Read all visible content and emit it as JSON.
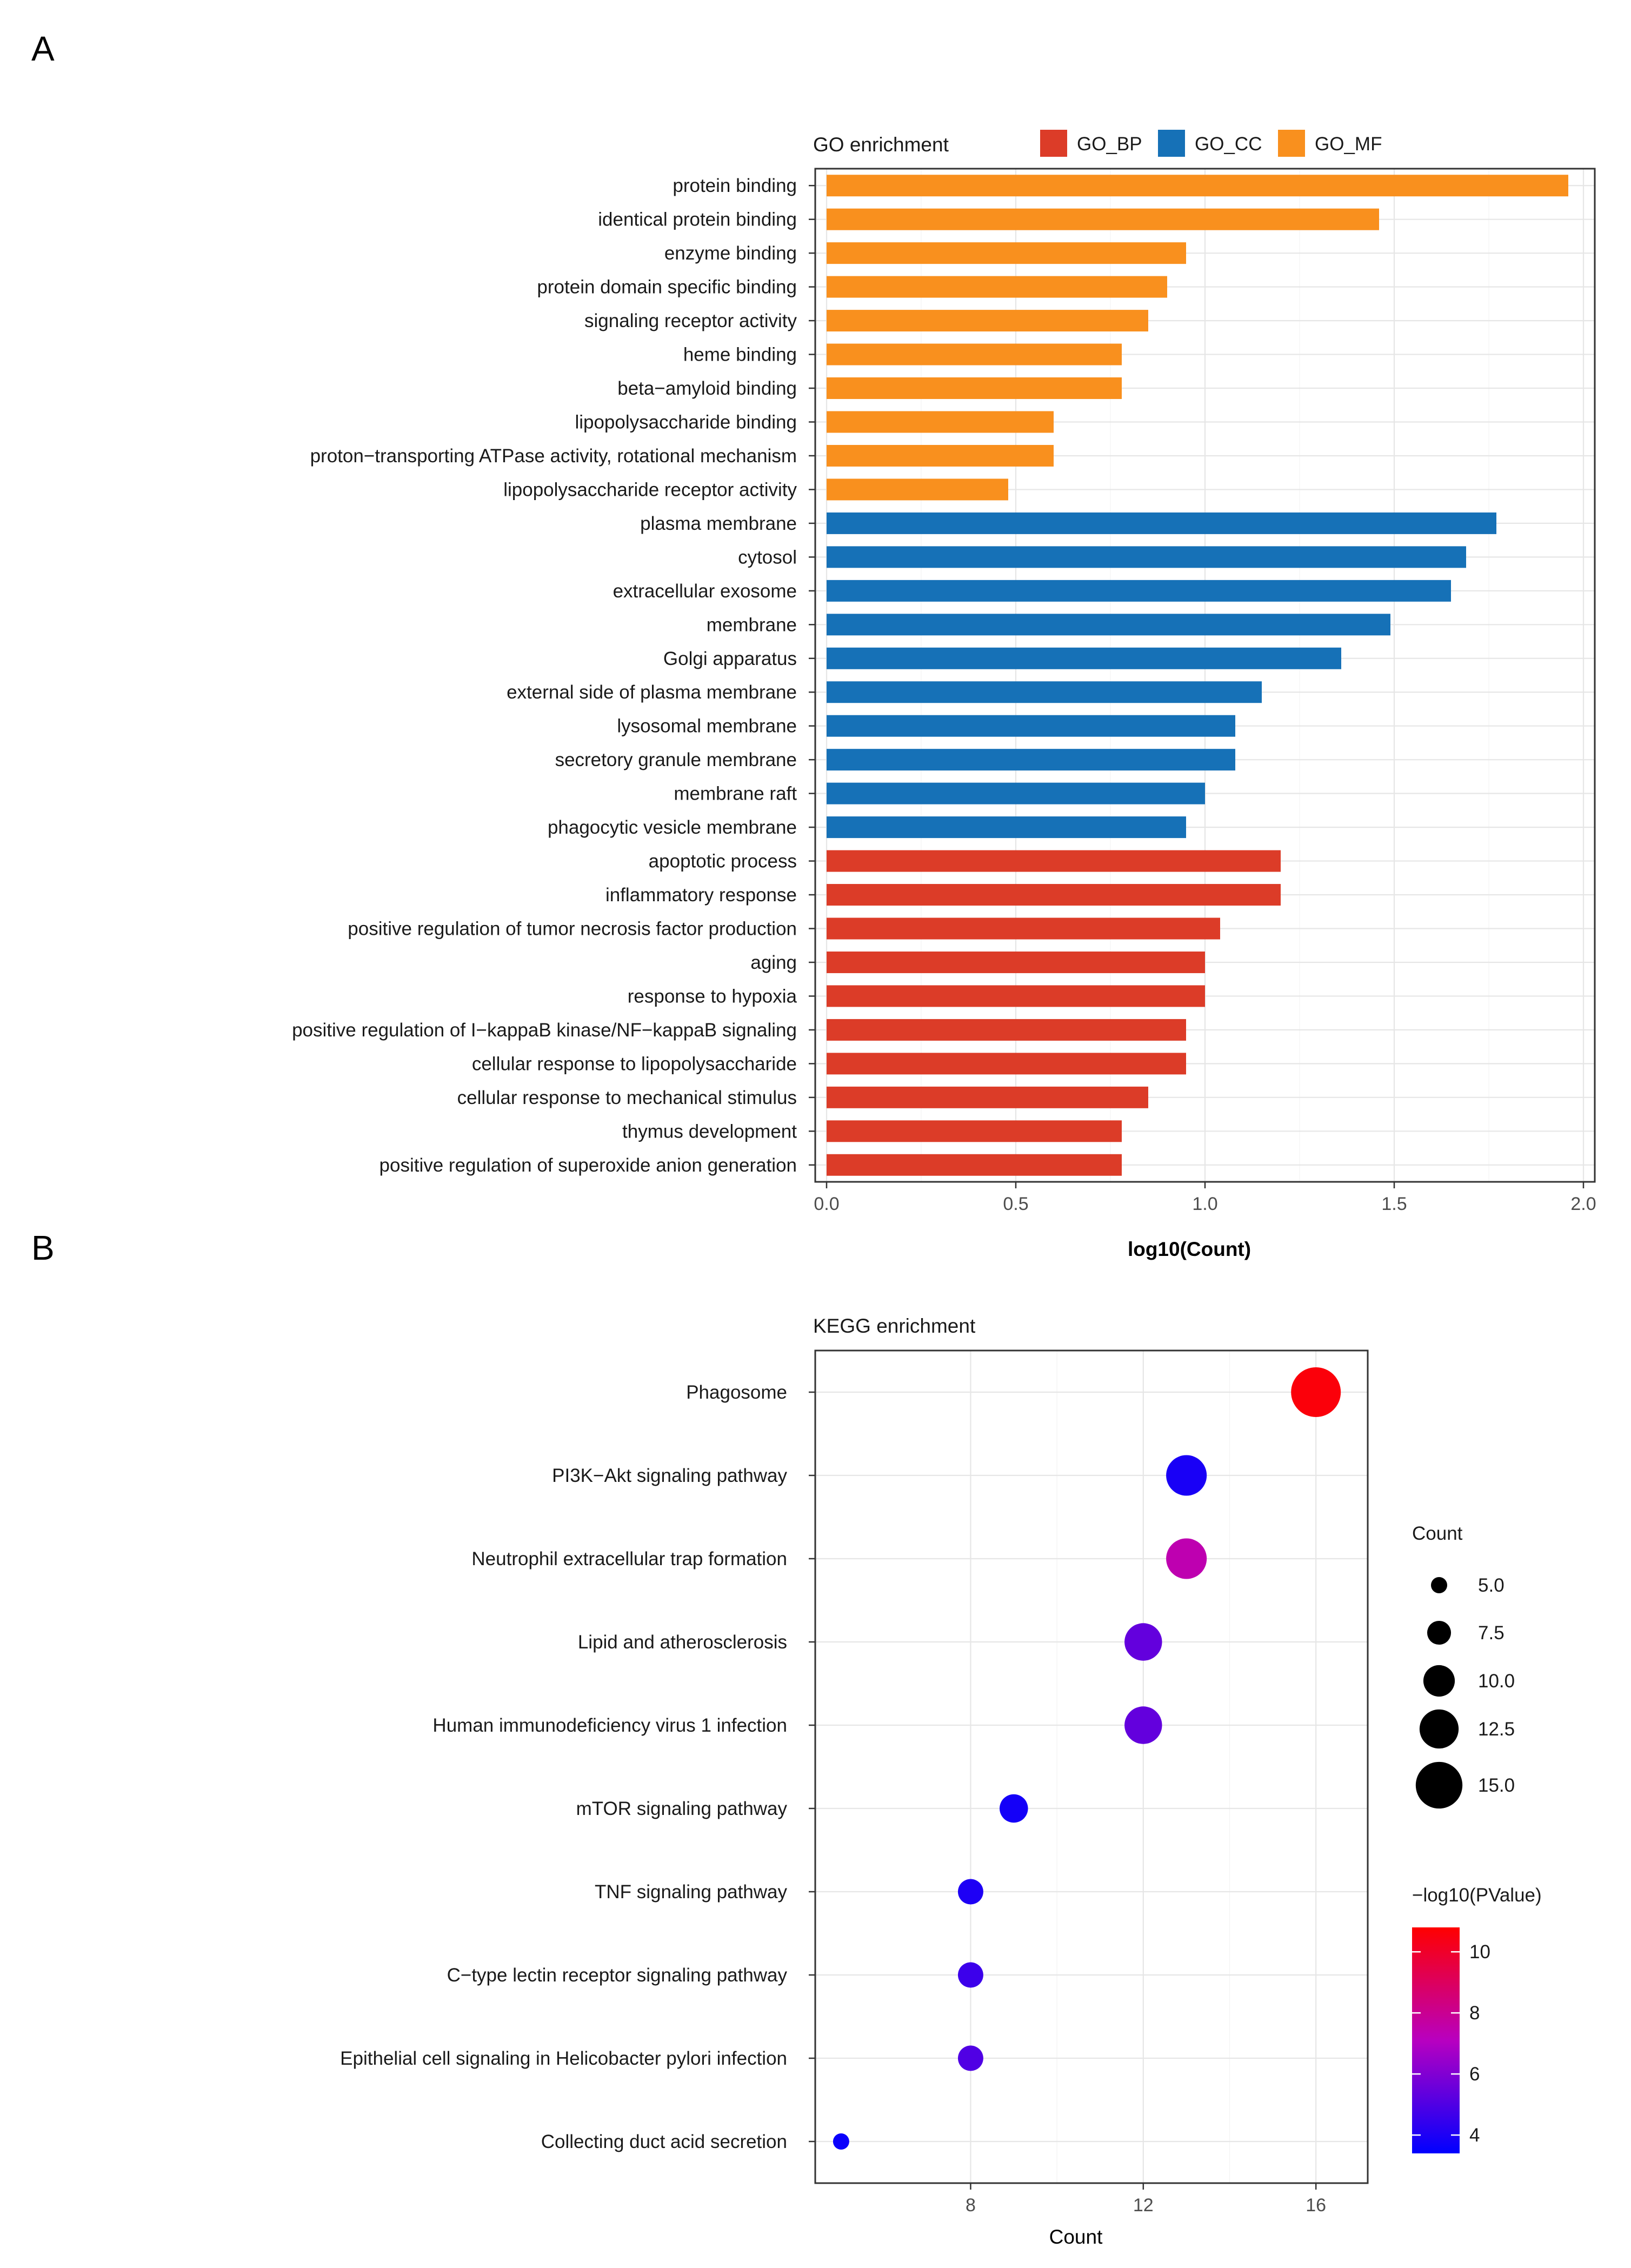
{
  "panels": {
    "a_label": "A",
    "b_label": "B"
  },
  "chart_data": [
    {
      "type": "bar",
      "orientation": "horizontal",
      "title": "GO enrichment",
      "xlabel": "log10(Count)",
      "ylabel": "",
      "xlim": [
        -0.03,
        2.03
      ],
      "xticks": [
        "0.0",
        "0.5",
        "1.0",
        "1.5",
        "2.0"
      ],
      "xtick_values": [
        0,
        0.5,
        1.0,
        1.5,
        2.0
      ],
      "legend": [
        {
          "name": "GO_BP",
          "color": "#DC3C28"
        },
        {
          "name": "GO_CC",
          "color": "#1671B7"
        },
        {
          "name": "GO_MF",
          "color": "#F9901E"
        }
      ],
      "legend_position": "top",
      "categories": [
        "protein binding",
        "identical protein binding",
        "enzyme binding",
        "protein domain specific binding",
        "signaling receptor activity",
        "heme binding",
        "beta−amyloid binding",
        "lipopolysaccharide binding",
        "proton−transporting ATPase activity, rotational mechanism",
        "lipopolysaccharide receptor activity",
        "plasma membrane",
        "cytosol",
        "extracellular exosome",
        "membrane",
        "Golgi apparatus",
        "external side of plasma membrane",
        "lysosomal membrane",
        "secretory granule membrane",
        "membrane raft",
        "phagocytic vesicle membrane",
        "apoptotic process",
        "inflammatory response",
        "positive regulation of tumor necrosis factor production",
        "aging",
        "response to hypoxia",
        "positive regulation of I−kappaB kinase/NF−kappaB signaling",
        "cellular response to lipopolysaccharide",
        "cellular response to mechanical stimulus",
        "thymus development",
        "positive regulation of superoxide anion generation"
      ],
      "groups": [
        "GO_MF",
        "GO_MF",
        "GO_MF",
        "GO_MF",
        "GO_MF",
        "GO_MF",
        "GO_MF",
        "GO_MF",
        "GO_MF",
        "GO_MF",
        "GO_CC",
        "GO_CC",
        "GO_CC",
        "GO_CC",
        "GO_CC",
        "GO_CC",
        "GO_CC",
        "GO_CC",
        "GO_CC",
        "GO_CC",
        "GO_BP",
        "GO_BP",
        "GO_BP",
        "GO_BP",
        "GO_BP",
        "GO_BP",
        "GO_BP",
        "GO_BP",
        "GO_BP",
        "GO_BP"
      ],
      "values": [
        1.96,
        1.46,
        0.95,
        0.9,
        0.85,
        0.78,
        0.78,
        0.6,
        0.6,
        0.48,
        1.77,
        1.69,
        1.65,
        1.49,
        1.36,
        1.15,
        1.08,
        1.08,
        1.0,
        0.95,
        1.2,
        1.2,
        1.04,
        1.0,
        1.0,
        0.95,
        0.95,
        0.85,
        0.78,
        0.78
      ]
    },
    {
      "type": "scatter",
      "title": "KEGG enrichment",
      "xlabel": "Count",
      "ylabel": "",
      "xlim": [
        4.4,
        17.2
      ],
      "xticks": [
        "8",
        "12",
        "16"
      ],
      "xtick_values": [
        8,
        12,
        16
      ],
      "categories": [
        "Phagosome",
        "PI3K−Akt signaling pathway",
        "Neutrophil extracellular trap formation",
        "Lipid and atherosclerosis",
        "Human immunodeficiency virus 1 infection",
        "mTOR signaling pathway",
        "TNF signaling pathway",
        "C−type lectin receptor signaling pathway",
        "Epithelial cell signaling in Helicobacter pylori infection",
        "Collecting duct acid secretion"
      ],
      "counts": [
        16,
        13,
        13,
        12,
        12,
        9,
        8,
        8,
        8,
        5
      ],
      "neg_log10_pvalue": [
        10.6,
        3.9,
        7.4,
        5.4,
        5.4,
        3.8,
        4.0,
        4.6,
        5.0,
        3.6
      ],
      "size_legend": {
        "title": "Count",
        "labels": [
          "5.0",
          "7.5",
          "10.0",
          "12.5",
          "15.0"
        ],
        "values": [
          5.0,
          7.5,
          10.0,
          12.5,
          15.0
        ]
      },
      "color_legend": {
        "title": "−log10(PValue)",
        "labels": [
          "10",
          "8",
          "6",
          "4"
        ],
        "values": [
          10,
          8,
          6,
          4
        ],
        "range": [
          3.4,
          10.8
        ],
        "low_color": "#0000FF",
        "high_color": "#FF0000"
      }
    }
  ]
}
